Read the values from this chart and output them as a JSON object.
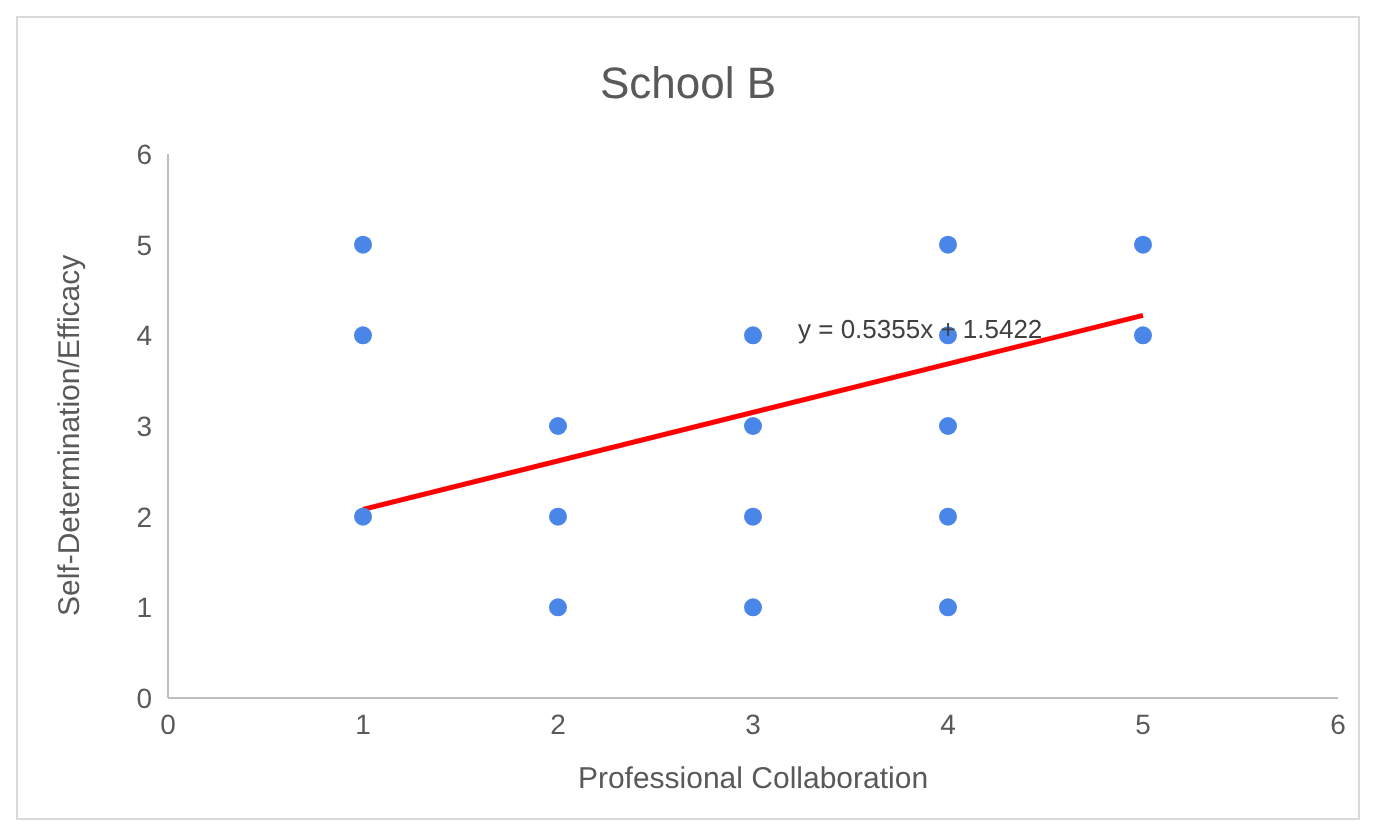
{
  "chart_data": {
    "type": "scatter",
    "title": "School B",
    "xlabel": "Professional Collaboration",
    "ylabel": "Self-Determination/Efficacy",
    "xlim": [
      0,
      6
    ],
    "ylim": [
      0,
      6
    ],
    "xticks": [
      0,
      1,
      2,
      3,
      4,
      5,
      6
    ],
    "yticks": [
      0,
      1,
      2,
      3,
      4,
      5,
      6
    ],
    "grid": false,
    "legend": false,
    "marker": "circle",
    "series": [
      {
        "color": "#4a86e8",
        "x": [
          1,
          1,
          1,
          2,
          2,
          2,
          3,
          3,
          3,
          3,
          4,
          4,
          4,
          4,
          4,
          5,
          5
        ],
        "values": [
          5,
          4,
          2,
          3,
          2,
          1,
          4,
          3,
          2,
          1,
          5,
          4,
          3,
          2,
          1,
          5,
          4
        ]
      },
      {
        "type": "line",
        "color": "#ff0000",
        "x": [
          1,
          5
        ],
        "values": [
          2.08,
          4.22
        ],
        "marker": "none",
        "line_style": "solid"
      }
    ],
    "annotations": [
      "y = 0.5355x + 1.5422"
    ]
  }
}
